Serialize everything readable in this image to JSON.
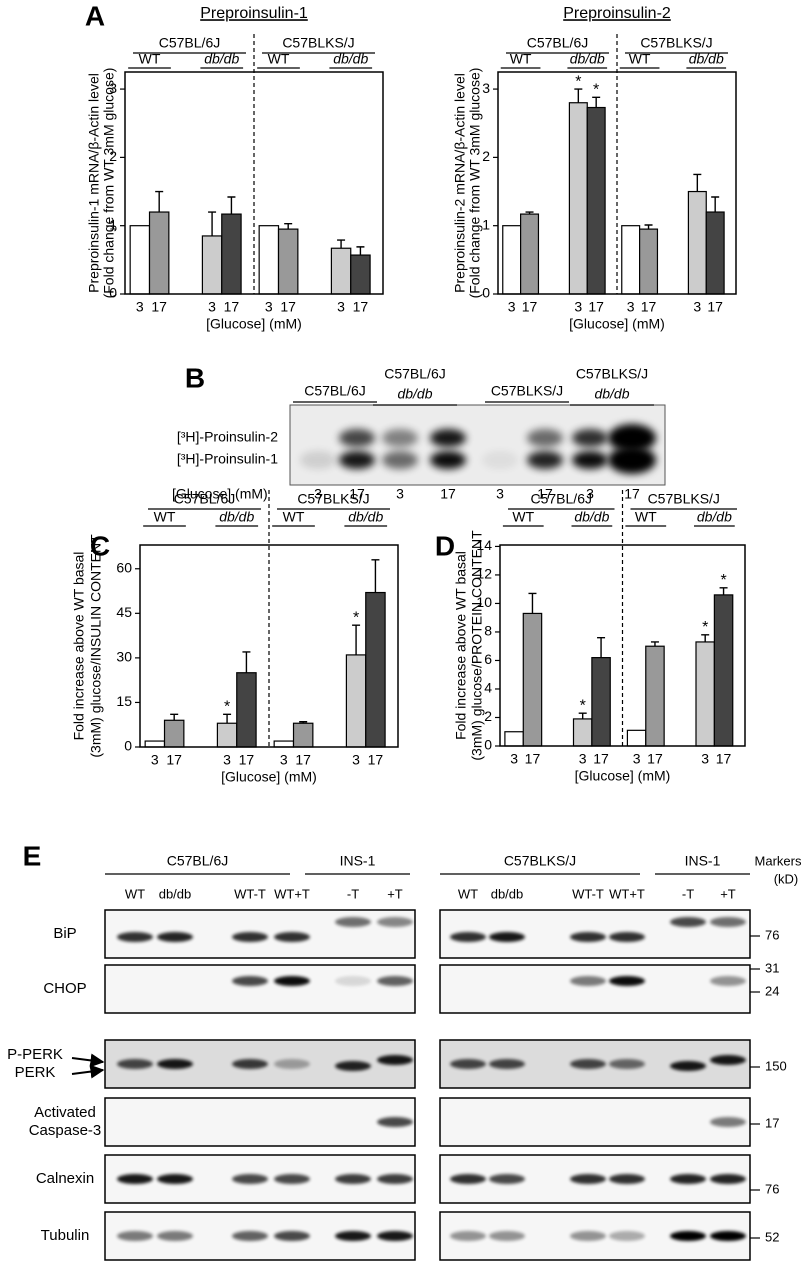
{
  "chart_data": [
    {
      "type": "bar",
      "panel_label": "A",
      "title": "Preproinsulin-1",
      "y_label": [
        "Preproinsulin-1 mRNA/β-Actin level",
        "(Fold change from WT 3mM glucose)"
      ],
      "x_label": "[Glucose] (mM)",
      "groups": [
        {
          "label": "C57BL/6J",
          "subgroups": [
            "WT",
            "db/db"
          ]
        },
        {
          "label": "C57BLKS/J",
          "subgroups": [
            "WT",
            "db/db"
          ]
        }
      ],
      "categories": [
        "3",
        "17",
        "3",
        "17",
        "3",
        "17",
        "3",
        "17"
      ],
      "values": [
        1.0,
        1.2,
        0.85,
        1.17,
        1.0,
        0.95,
        0.67,
        0.57
      ],
      "errors": [
        null,
        0.3,
        0.35,
        0.25,
        null,
        0.08,
        0.12,
        0.12
      ],
      "significance": [
        null,
        null,
        null,
        null,
        null,
        null,
        null,
        null
      ],
      "colors": [
        "#ffffff",
        "#999999",
        "#cccccc",
        "#444444",
        "#ffffff",
        "#999999",
        "#cccccc",
        "#444444"
      ],
      "ylim": [
        0,
        3.25
      ],
      "yticks": [
        0,
        1,
        2,
        3
      ]
    },
    {
      "type": "bar",
      "title": "Preproinsulin-2",
      "y_label": [
        "Preproinsulin-2 mRNA/β-Actin level",
        "(Fold change from WT 3mM glucose)"
      ],
      "x_label": "[Glucose] (mM)",
      "groups": [
        {
          "label": "C57BL/6J",
          "subgroups": [
            "WT",
            "db/db"
          ]
        },
        {
          "label": "C57BLKS/J",
          "subgroups": [
            "WT",
            "db/db"
          ]
        }
      ],
      "categories": [
        "3",
        "17",
        "3",
        "17",
        "3",
        "17",
        "3",
        "17"
      ],
      "values": [
        1.0,
        1.17,
        2.8,
        2.73,
        1.0,
        0.95,
        1.5,
        1.2
      ],
      "errors": [
        null,
        0.03,
        0.2,
        0.15,
        null,
        0.06,
        0.25,
        0.22
      ],
      "significance": [
        null,
        null,
        "*",
        "*",
        null,
        null,
        null,
        null
      ],
      "colors": [
        "#ffffff",
        "#999999",
        "#cccccc",
        "#444444",
        "#ffffff",
        "#999999",
        "#cccccc",
        "#444444"
      ],
      "ylim": [
        0,
        3.25
      ],
      "yticks": [
        0,
        1,
        2,
        3
      ]
    },
    {
      "type": "bar",
      "panel_label": "C",
      "y_label": [
        "Fold increase above WT basal",
        "(3mM) glucose/INSULIN CONTENT"
      ],
      "x_label": "[Glucose] (mM)",
      "groups": [
        {
          "label": "C57BL/6J",
          "subgroups": [
            "WT",
            "db/db"
          ]
        },
        {
          "label": "C57BLKS/J",
          "subgroups": [
            "WT",
            "db/db"
          ]
        }
      ],
      "categories": [
        "3",
        "17",
        "3",
        "17",
        "3",
        "17",
        "3",
        "17"
      ],
      "values": [
        2,
        9,
        8,
        25,
        2,
        8,
        31,
        52
      ],
      "errors": [
        null,
        2,
        3,
        7,
        null,
        0.5,
        10,
        11
      ],
      "significance": [
        null,
        null,
        "*",
        null,
        null,
        null,
        "*",
        null
      ],
      "colors": [
        "#ffffff",
        "#999999",
        "#cccccc",
        "#444444",
        "#ffffff",
        "#999999",
        "#cccccc",
        "#444444"
      ],
      "ylim": [
        0,
        68
      ],
      "yticks": [
        0,
        15,
        30,
        45,
        60
      ]
    },
    {
      "type": "bar",
      "panel_label": "D",
      "y_label": [
        "Fold increase above WT basal",
        "(3mM) glucose/PROTEIN CONTENT"
      ],
      "x_label": "[Glucose] (mM)",
      "groups": [
        {
          "label": "C57BL/6J",
          "subgroups": [
            "WT",
            "db/db"
          ]
        },
        {
          "label": "C57BLKS/J",
          "subgroups": [
            "WT",
            "db/db"
          ]
        }
      ],
      "categories": [
        "3",
        "17",
        "3",
        "17",
        "3",
        "17",
        "3",
        "17"
      ],
      "values": [
        1,
        9.3,
        1.9,
        6.2,
        1.1,
        7,
        7.3,
        10.6
      ],
      "errors": [
        null,
        1.4,
        0.4,
        1.4,
        null,
        0.3,
        0.5,
        0.5
      ],
      "significance": [
        null,
        null,
        "*",
        null,
        null,
        null,
        "*",
        "*"
      ],
      "colors": [
        "#ffffff",
        "#999999",
        "#cccccc",
        "#444444",
        "#ffffff",
        "#999999",
        "#cccccc",
        "#444444"
      ],
      "ylim": [
        0,
        14.1
      ],
      "yticks": [
        0,
        2,
        4,
        6,
        8,
        10,
        12,
        14
      ]
    }
  ],
  "panel_b": {
    "panel_label": "B",
    "strains": [
      {
        "label": "C57BL/6J"
      },
      {
        "label": "C57BL/6J",
        "genotype": "db/db"
      },
      {
        "label": "C57BLKS/J"
      },
      {
        "label": "C57BLKS/J",
        "genotype": "db/db"
      }
    ],
    "bands": [
      "[³H]-Proinsulin-2",
      "[³H]-Proinsulin-1"
    ],
    "lane_axis_label": "[Glucose] (mM)",
    "lanes": [
      "3",
      "17",
      "3",
      "17",
      "3",
      "17",
      "3",
      "17"
    ]
  },
  "panel_e": {
    "panel_label": "E",
    "blots": [
      {
        "groups": [
          "C57BL/6J",
          "INS-1"
        ],
        "lanes": [
          "WT",
          "db/db",
          "WT-T",
          "WT+T",
          "-T",
          "+T"
        ]
      },
      {
        "groups": [
          "C57BLKS/J",
          "INS-1"
        ],
        "lanes": [
          "WT",
          "db/db",
          "WT-T",
          "WT+T",
          "-T",
          "+T"
        ]
      }
    ],
    "rows": [
      [
        "BiP"
      ],
      [
        "CHOP"
      ],
      [
        "P-PERK",
        "PERK"
      ],
      [
        "Activated",
        "Caspase-3"
      ],
      [
        "Calnexin"
      ],
      [
        "Tubulin"
      ]
    ],
    "markers_title": [
      "Markers",
      "(kD)"
    ],
    "markers": [
      "76",
      "31",
      "24",
      "150",
      "17",
      "76",
      "52"
    ]
  }
}
